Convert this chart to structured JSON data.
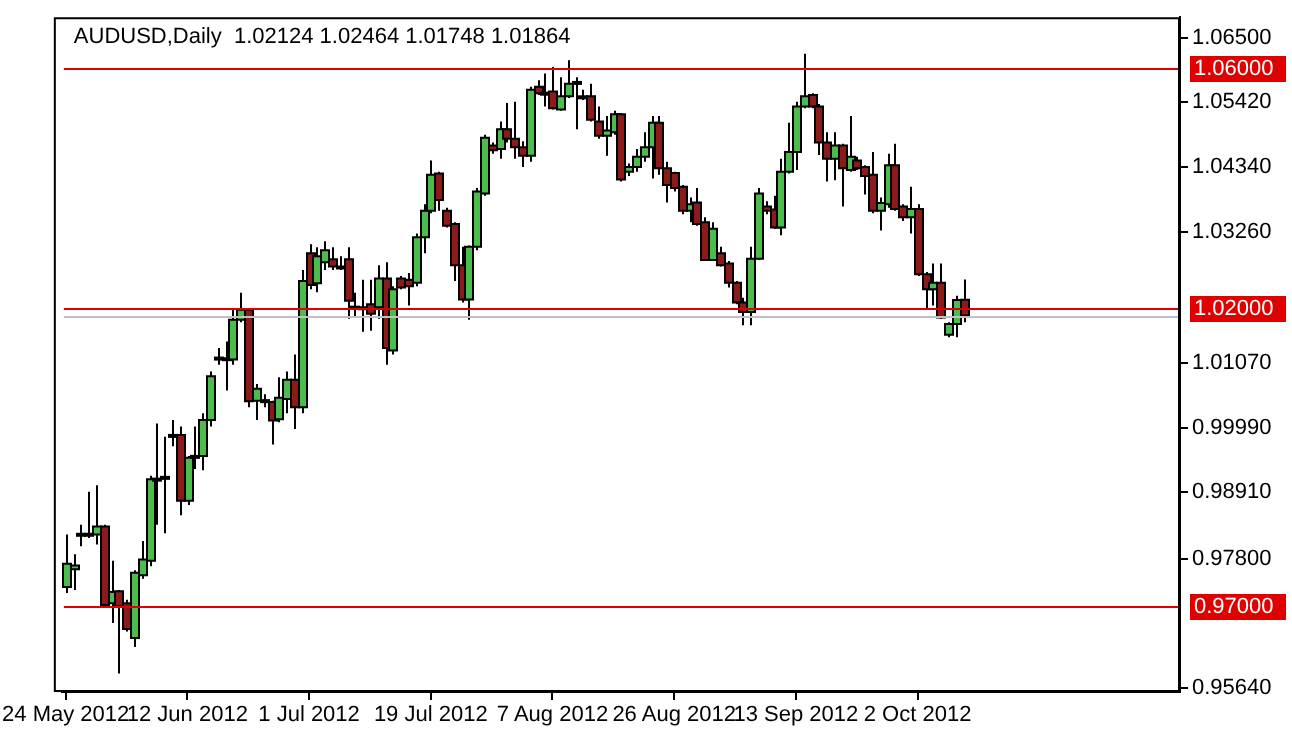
{
  "chart_data": {
    "type": "candlestick",
    "title": "AUDUSD,Daily  1.02124 1.02464 1.01748 1.01864",
    "categories": [
      "24 May 2012",
      null,
      null,
      null,
      null,
      null,
      null,
      null,
      null,
      null,
      null,
      null,
      null,
      null,
      null,
      null,
      "12 Jun 2012",
      null,
      null,
      null,
      null,
      null,
      null,
      null,
      null,
      null,
      null,
      null,
      null,
      null,
      null,
      null,
      "1 Jul 2012",
      null,
      null,
      null,
      null,
      null,
      null,
      null,
      null,
      null,
      null,
      null,
      null,
      null,
      null,
      null,
      "19 Jul 2012",
      null,
      null,
      null,
      null,
      null,
      null,
      null,
      null,
      null,
      null,
      null,
      null,
      null,
      null,
      null,
      "7 Aug 2012",
      null,
      null,
      null,
      null,
      null,
      null,
      null,
      null,
      null,
      null,
      null,
      null,
      null,
      null,
      null,
      "26 Aug 2012",
      null,
      null,
      null,
      null,
      null,
      null,
      null,
      null,
      null,
      null,
      null,
      null,
      null,
      null,
      null,
      "13 Sep 2012",
      null,
      null,
      null,
      null,
      null,
      null,
      null,
      null,
      null,
      null,
      null,
      null,
      null,
      null,
      null,
      "2 Oct 2012",
      null,
      null,
      null,
      null,
      null,
      null,
      null,
      null,
      null,
      null,
      null,
      null,
      null,
      null,
      null,
      null,
      null,
      null,
      null,
      null,
      null,
      null,
      null,
      null,
      null,
      null,
      null,
      null,
      null,
      null,
      null,
      null,
      null,
      null
    ],
    "ohlc": [
      [
        0.9733,
        0.9821,
        0.9723,
        0.9772
      ],
      [
        0.9763,
        0.9788,
        0.9728,
        0.9769
      ],
      [
        0.9821,
        0.9837,
        0.9801,
        0.9822
      ],
      [
        0.9821,
        0.9892,
        0.9815,
        0.9822
      ],
      [
        0.9821,
        0.9903,
        0.9804,
        0.9834
      ],
      [
        0.9834,
        0.9837,
        0.9701,
        0.9703
      ],
      [
        0.9706,
        0.9777,
        0.9673,
        0.9725
      ],
      [
        0.9726,
        0.9728,
        0.9589,
        0.9701
      ],
      [
        0.9706,
        0.9712,
        0.9659,
        0.9663
      ],
      [
        0.9648,
        0.9761,
        0.9633,
        0.9757
      ],
      [
        0.9753,
        0.981,
        0.9747,
        0.9779
      ],
      [
        0.9777,
        0.9919,
        0.9768,
        0.9913
      ],
      [
        0.9913,
        1.0006,
        0.9837,
        0.9914
      ],
      [
        0.9916,
        0.9984,
        0.9823,
        0.9917
      ],
      [
        0.9984,
        1.0012,
        0.9968,
        0.9987
      ],
      [
        0.9987,
        1.0001,
        0.9853,
        0.9877
      ],
      [
        0.9877,
        0.9952,
        0.987,
        0.9949
      ],
      [
        0.9949,
        1.0001,
        0.993,
        0.9952
      ],
      [
        0.9952,
        1.0023,
        0.9928,
        1.0012
      ],
      [
        1.0012,
        1.0093,
        1.0001,
        1.0085
      ],
      [
        1.0115,
        1.0132,
        1.0104,
        1.0116
      ],
      [
        1.0115,
        1.0143,
        1.0061,
        1.0114
      ],
      [
        1.0113,
        1.0197,
        1.0104,
        1.0179
      ],
      [
        1.0179,
        1.0224,
        1.0175,
        1.0196
      ],
      [
        1.0196,
        1.0198,
        1.0033,
        1.0043
      ],
      [
        1.0044,
        1.0072,
        1.0012,
        1.0064
      ],
      [
        1.0044,
        1.0055,
        1.0033,
        1.0045
      ],
      [
        1.0042,
        1.0044,
        0.9971,
        1.0011
      ],
      [
        1.0013,
        1.0083,
        1.0008,
        1.0049
      ],
      [
        1.0047,
        1.0093,
        1.0023,
        1.0079
      ],
      [
        1.0079,
        1.0121,
        0.9997,
        1.0033
      ],
      [
        1.0033,
        1.0262,
        1.0023,
        1.0244
      ],
      [
        1.029,
        1.0305,
        1.023,
        1.0237
      ],
      [
        1.024,
        1.03,
        1.0225,
        1.0285
      ],
      [
        1.0275,
        1.031,
        1.0262,
        1.0295
      ],
      [
        1.028,
        1.03,
        1.0262,
        1.0268
      ],
      [
        1.0268,
        1.0285,
        1.0262,
        1.0265
      ],
      [
        1.028,
        1.03,
        1.0181,
        1.0211
      ],
      [
        1.02,
        1.0224,
        1.0183,
        1.0201
      ],
      [
        1.02,
        1.0246,
        1.0159,
        1.0199
      ],
      [
        1.0205,
        1.0246,
        1.0161,
        1.0189
      ],
      [
        1.02,
        1.027,
        1.0181,
        1.0248
      ],
      [
        1.0248,
        1.0275,
        1.0104,
        1.0132
      ],
      [
        1.0128,
        1.0235,
        1.0121,
        1.023
      ],
      [
        1.0248,
        1.0252,
        1.023,
        1.0233
      ],
      [
        1.0246,
        1.0257,
        1.0203,
        1.0235
      ],
      [
        1.0241,
        1.0323,
        1.0235,
        1.0317
      ],
      [
        1.0317,
        1.0372,
        1.029,
        1.0361
      ],
      [
        1.0361,
        1.0445,
        1.0357,
        1.0421
      ],
      [
        1.0423,
        1.0426,
        1.0361,
        1.0379
      ],
      [
        1.0361,
        1.0366,
        1.0333,
        1.0336
      ],
      [
        1.0339,
        1.0342,
        1.0244,
        1.027
      ],
      [
        1.027,
        1.0301,
        1.0208,
        1.0213
      ],
      [
        1.0213,
        1.0303,
        1.0179,
        1.0301
      ],
      [
        1.0301,
        1.0399,
        1.0295,
        1.0393
      ],
      [
        1.039,
        1.0488,
        1.0386,
        1.0483
      ],
      [
        1.047,
        1.0475,
        1.0456,
        1.0462
      ],
      [
        1.0464,
        1.051,
        1.0448,
        1.0497
      ],
      [
        1.0497,
        1.0541,
        1.0475,
        1.0481
      ],
      [
        1.0481,
        1.0543,
        1.0448,
        1.0467
      ],
      [
        1.0467,
        1.0477,
        1.0434,
        1.0453
      ],
      [
        1.0453,
        1.0568,
        1.0443,
        1.0563
      ],
      [
        1.0568,
        1.0579,
        1.0554,
        1.0557
      ],
      [
        1.0558,
        1.059,
        1.0535,
        1.0557
      ],
      [
        1.056,
        1.0601,
        1.053,
        1.0532
      ],
      [
        1.053,
        1.0584,
        1.0528,
        1.0552
      ],
      [
        1.0552,
        1.0612,
        1.0549,
        1.0573
      ],
      [
        1.0576,
        1.0584,
        1.0497,
        1.0575
      ],
      [
        1.0552,
        1.0563,
        1.0546,
        1.0551
      ],
      [
        1.0552,
        1.0573,
        1.051,
        1.0513
      ],
      [
        1.051,
        1.0535,
        1.0481,
        1.0486
      ],
      [
        1.0486,
        1.0519,
        1.0453,
        1.0495
      ],
      [
        1.0492,
        1.0528,
        1.0488,
        1.0522
      ],
      [
        1.0522,
        1.0524,
        1.041,
        1.0413
      ],
      [
        1.0426,
        1.044,
        1.0419,
        1.0434
      ],
      [
        1.0434,
        1.0464,
        1.0426,
        1.0451
      ],
      [
        1.0451,
        1.0492,
        1.0443,
        1.0467
      ],
      [
        1.0467,
        1.0519,
        1.0415,
        1.0508
      ],
      [
        1.0508,
        1.0519,
        1.0421,
        1.0432
      ],
      [
        1.0432,
        1.0443,
        1.0375,
        1.0404
      ],
      [
        1.0424,
        1.0426,
        1.0393,
        1.0399
      ],
      [
        1.0401,
        1.0404,
        1.0355,
        1.0361
      ],
      [
        1.0361,
        1.0383,
        1.0342,
        1.0372
      ],
      [
        1.0375,
        1.0399,
        1.0336,
        1.0339
      ],
      [
        1.0342,
        1.035,
        1.0277,
        1.0279
      ],
      [
        1.0279,
        1.0342,
        1.0277,
        1.0331
      ],
      [
        1.029,
        1.0301,
        1.0268,
        1.027
      ],
      [
        1.0273,
        1.0277,
        1.0233,
        1.0241
      ],
      [
        1.0241,
        1.0244,
        1.0205,
        1.0208
      ],
      [
        1.0208,
        1.0216,
        1.017,
        1.0192
      ],
      [
        1.0192,
        1.0301,
        1.017,
        1.0281
      ],
      [
        1.0281,
        1.0399,
        1.0279,
        1.039
      ],
      [
        1.0368,
        1.0377,
        1.0355,
        1.0361
      ],
      [
        1.0363,
        1.0386,
        1.0331,
        1.0333
      ],
      [
        1.0333,
        1.0448,
        1.032,
        1.0426
      ],
      [
        1.0426,
        1.0508,
        1.0423,
        1.0459
      ],
      [
        1.0459,
        1.0543,
        1.0429,
        1.0535
      ],
      [
        1.0535,
        1.0623,
        1.0532,
        1.0552
      ],
      [
        1.0554,
        1.0557,
        1.0532,
        1.0535
      ],
      [
        1.0535,
        1.0539,
        1.0454,
        1.0475
      ],
      [
        1.0475,
        1.0492,
        1.041,
        1.0448
      ],
      [
        1.0448,
        1.0492,
        1.0412,
        1.047
      ],
      [
        1.047,
        1.0473,
        1.0368,
        1.0432
      ],
      [
        1.0429,
        1.0519,
        1.0426,
        1.0451
      ],
      [
        1.0445,
        1.0451,
        1.0429,
        1.0432
      ],
      [
        1.0434,
        1.0437,
        1.0388,
        1.0419
      ],
      [
        1.0421,
        1.0459,
        1.0357,
        1.0361
      ],
      [
        1.0361,
        1.0383,
        1.0328,
        1.0374
      ],
      [
        1.0372,
        1.0456,
        1.0366,
        1.0437
      ],
      [
        1.0437,
        1.0473,
        1.0361,
        1.0364
      ],
      [
        1.0368,
        1.0372,
        1.0344,
        1.035
      ],
      [
        1.035,
        1.0401,
        1.0323,
        1.0364
      ],
      [
        1.0364,
        1.0372,
        1.0252,
        1.0255
      ],
      [
        1.0255,
        1.0259,
        1.0197,
        1.023
      ],
      [
        1.023,
        1.0273,
        1.0203,
        1.0241
      ],
      [
        1.0241,
        1.0273,
        1.0181,
        1.0183
      ],
      [
        1.0154,
        1.0175,
        1.015,
        1.0172
      ],
      [
        1.0172,
        1.0219,
        1.015,
        1.0212
      ],
      [
        1.02124,
        1.02464,
        1.01748,
        1.01864
      ],
      null,
      null,
      null,
      null,
      null,
      null,
      null,
      null,
      null,
      null,
      null,
      null,
      null,
      null,
      null,
      null,
      null,
      null,
      null,
      null,
      null,
      null,
      null,
      null,
      null,
      null,
      null,
      null
    ],
    "colors": [
      "#4cbc4c",
      "#4cbc4c",
      "#4cbc4c",
      "#4cbc4c",
      "#4cbc4c",
      "#8b1a1a",
      "#4cbc4c",
      "#8b1a1a",
      "#8b1a1a",
      "#4cbc4c",
      "#4cbc4c",
      "#4cbc4c",
      "#4cbc4c",
      "#4cbc4c",
      "#4cbc4c",
      "#8b1a1a",
      "#4cbc4c",
      "#4cbc4c",
      "#4cbc4c",
      "#4cbc4c",
      "#4cbc4c",
      "#8b1a1a",
      "#4cbc4c",
      "#4cbc4c",
      "#8b1a1a",
      "#4cbc4c",
      "#4cbc4c",
      "#8b1a1a",
      "#4cbc4c",
      "#4cbc4c",
      "#8b1a1a",
      "#4cbc4c",
      "#8b1a1a",
      "#4cbc4c",
      "#4cbc4c",
      "#8b1a1a",
      "#8b1a1a",
      "#8b1a1a",
      "#4cbc4c",
      "#8b1a1a",
      "#8b1a1a",
      "#4cbc4c",
      "#8b1a1a",
      "#4cbc4c",
      "#8b1a1a",
      "#8b1a1a",
      "#4cbc4c",
      "#4cbc4c",
      "#4cbc4c",
      "#8b1a1a",
      "#8b1a1a",
      "#8b1a1a",
      "#8b1a1a",
      "#4cbc4c",
      "#4cbc4c",
      "#4cbc4c",
      "#8b1a1a",
      "#4cbc4c",
      "#8b1a1a",
      "#8b1a1a",
      "#8b1a1a",
      "#4cbc4c",
      "#8b1a1a",
      "#8b1a1a",
      "#8b1a1a",
      "#4cbc4c",
      "#4cbc4c",
      "#8b1a1a",
      "#8b1a1a",
      "#8b1a1a",
      "#8b1a1a",
      "#4cbc4c",
      "#4cbc4c",
      "#8b1a1a",
      "#4cbc4c",
      "#4cbc4c",
      "#4cbc4c",
      "#4cbc4c",
      "#8b1a1a",
      "#8b1a1a",
      "#8b1a1a",
      "#8b1a1a",
      "#4cbc4c",
      "#8b1a1a",
      "#8b1a1a",
      "#4cbc4c",
      "#8b1a1a",
      "#8b1a1a",
      "#8b1a1a",
      "#8b1a1a",
      "#4cbc4c",
      "#4cbc4c",
      "#8b1a1a",
      "#8b1a1a",
      "#4cbc4c",
      "#4cbc4c",
      "#4cbc4c",
      "#4cbc4c",
      "#8b1a1a",
      "#8b1a1a",
      "#8b1a1a",
      "#4cbc4c",
      "#8b1a1a",
      "#4cbc4c",
      "#8b1a1a",
      "#8b1a1a",
      "#8b1a1a",
      "#4cbc4c",
      "#4cbc4c",
      "#8b1a1a",
      "#8b1a1a",
      "#4cbc4c",
      "#8b1a1a",
      "#8b1a1a",
      "#4cbc4c",
      "#8b1a1a",
      "#4cbc4c",
      "#4cbc4c",
      "#8b1a1a",
      null,
      null,
      null,
      null,
      null,
      null,
      null,
      null,
      null,
      null,
      null,
      null,
      null,
      null,
      null,
      null,
      null,
      null,
      null,
      null,
      null,
      null,
      null,
      null,
      null,
      null,
      null,
      null
    ],
    "ylim": [
      0.9558,
      1.0684
    ],
    "yticks": [
      {
        "value": 1.065,
        "label": "1.06500"
      },
      {
        "value": 1.0542,
        "label": "1.05420"
      },
      {
        "value": 1.0434,
        "label": "1.04340"
      },
      {
        "value": 1.0326,
        "label": "1.03260"
      },
      {
        "value": 1.0107,
        "label": "1.01070"
      },
      {
        "value": 0.9999,
        "label": "0.99990"
      },
      {
        "value": 0.9891,
        "label": "0.98910"
      },
      {
        "value": 0.978,
        "label": "0.97800"
      },
      {
        "value": 0.9564,
        "label": "0.95640"
      }
    ],
    "ref_lines": [
      {
        "axis": "y",
        "value": 1.01864,
        "color": "#c0c0c0"
      },
      {
        "axis": "y",
        "value": 1.06,
        "label": "1.06000",
        "color": "#e00000"
      },
      {
        "axis": "y",
        "value": 1.02,
        "label": "1.02000",
        "color": "#e00000"
      },
      {
        "axis": "y",
        "value": 0.97,
        "label": "0.97000",
        "color": "#e00000"
      }
    ]
  }
}
